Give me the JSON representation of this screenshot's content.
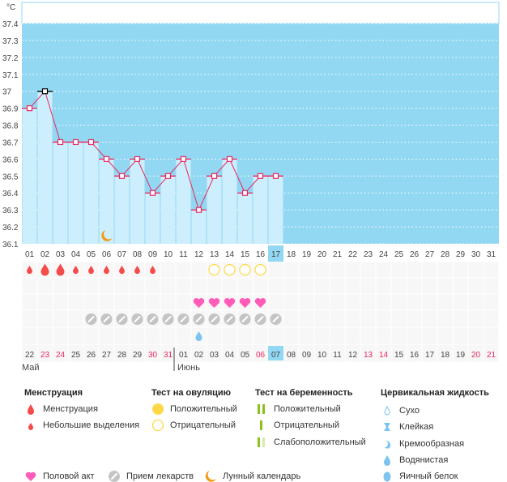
{
  "unit": "°C",
  "chart_data": {
    "type": "line",
    "ylabel": "°C",
    "ylim": [
      36.1,
      37.4
    ],
    "yticks": [
      "36.1",
      "36.2",
      "36.3",
      "36.4",
      "36.5",
      "36.6",
      "36.7",
      "36.8",
      "36.9",
      "37",
      "37.1",
      "37.2",
      "37.3",
      "37.4"
    ],
    "cycle_days": [
      "01",
      "02",
      "03",
      "04",
      "05",
      "06",
      "07",
      "08",
      "09",
      "10",
      "11",
      "12",
      "13",
      "14",
      "15",
      "16",
      "17",
      "18",
      "19",
      "20",
      "21",
      "22",
      "23",
      "24",
      "25",
      "26",
      "27",
      "28",
      "29",
      "30",
      "31"
    ],
    "temperatures": [
      36.9,
      37.0,
      36.7,
      36.7,
      36.7,
      36.6,
      36.5,
      36.6,
      36.4,
      36.5,
      36.6,
      36.3,
      36.5,
      36.6,
      36.4,
      36.5,
      36.5
    ],
    "highlight_day_index": 16,
    "marked_day_index": 1,
    "moon_day_index": 5
  },
  "markers": {
    "menstruation_heavy": [
      1,
      2
    ],
    "menstruation_light": [
      0,
      3,
      4,
      5,
      6,
      7,
      8
    ],
    "ovulation_negative": [
      12,
      13,
      14,
      15
    ],
    "intercourse": [
      11,
      12,
      13,
      14,
      15
    ],
    "medication": [
      4,
      5,
      6,
      7,
      8,
      9,
      10,
      11,
      12,
      13,
      14,
      15,
      16
    ],
    "cervical_watery": [
      11
    ]
  },
  "dates": [
    "22",
    "23",
    "24",
    "25",
    "26",
    "27",
    "28",
    "29",
    "30",
    "31",
    "01",
    "02",
    "03",
    "04",
    "05",
    "06",
    "07",
    "08",
    "09",
    "10",
    "11",
    "12",
    "13",
    "14",
    "15",
    "16",
    "17",
    "18",
    "19",
    "20",
    "21"
  ],
  "weekend_date_indices": [
    1,
    2,
    8,
    9,
    15,
    22,
    23,
    29,
    30
  ],
  "months": [
    "Май",
    "Июнь"
  ],
  "colors": {
    "sky": "#93d8f3",
    "bar": "#cdeefc",
    "line": "#e8275f",
    "weekend": "#e8275f",
    "blood": "#f44b4b",
    "heart": "#ff5cb8",
    "pill": "#c4c4c4",
    "moon": "#f29a16",
    "ovu": "#ffd84a",
    "green": "#8fbf1a",
    "drop": "#7cc4ee"
  },
  "legend": {
    "menstruation": {
      "title": "Менструация",
      "items": [
        "Менструация",
        "Небольшие выделения"
      ]
    },
    "ovulation": {
      "title": "Тест на овуляцию",
      "items": [
        "Положительный",
        "Отрицательный"
      ]
    },
    "pregnancy": {
      "title": "Тест на беременность",
      "items": [
        "Положительный",
        "Отрицательный",
        "Слабоположительный"
      ]
    },
    "cervical": {
      "title": "Цервикальная жидкость",
      "items": [
        "Сухо",
        "Клейкая",
        "Кремообразная",
        "Водянистая",
        "Яичный белок"
      ]
    },
    "other": [
      "Половой акт",
      "Прием лекарств",
      "Лунный календарь"
    ]
  }
}
